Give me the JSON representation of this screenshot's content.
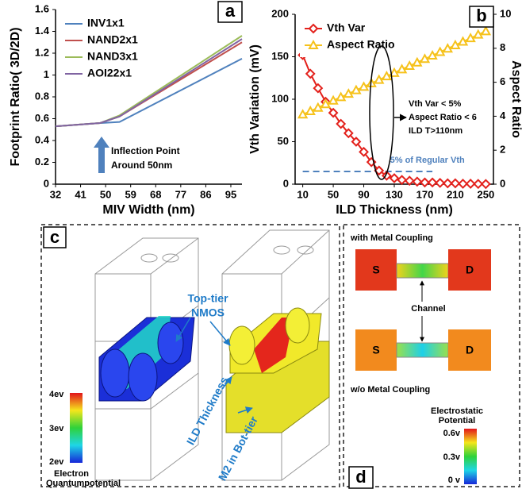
{
  "chart_data": [
    {
      "type": "line",
      "panel": "a",
      "xlabel": "MIV Width (nm)",
      "ylabel": "Footprint Ratio( 3D/2D)",
      "x": [
        32,
        48,
        55,
        99
      ],
      "xlim": [
        32,
        99
      ],
      "xticks": [
        32,
        41,
        50,
        59,
        68,
        77,
        86,
        95
      ],
      "ylim": [
        0,
        1.6
      ],
      "yticks": [
        0,
        0.2,
        0.4,
        0.6,
        0.8,
        1,
        1.2,
        1.4,
        1.6
      ],
      "legend": "upper left",
      "series": [
        {
          "name": "INV1x1",
          "color": "#4f81bd",
          "values": [
            0.53,
            0.56,
            0.57,
            1.15
          ]
        },
        {
          "name": "NAND2x1",
          "color": "#c0504d",
          "values": [
            0.53,
            0.56,
            0.62,
            1.3
          ]
        },
        {
          "name": "NAND3x1",
          "color": "#9bbb59",
          "values": [
            0.53,
            0.56,
            0.63,
            1.36
          ]
        },
        {
          "name": "AOI22x1",
          "color": "#8064a2",
          "values": [
            0.53,
            0.56,
            0.62,
            1.33
          ]
        }
      ],
      "annotation": [
        "Inflection Point",
        "Around 50nm"
      ]
    },
    {
      "type": "line",
      "panel": "b",
      "xlabel": "ILD Thickness (nm)",
      "ylabel": "Vth Variation (mV)",
      "y2label": "Aspect Ratio",
      "x": [
        10,
        20,
        30,
        40,
        50,
        60,
        70,
        80,
        90,
        100,
        110,
        120,
        130,
        140,
        150,
        160,
        170,
        180,
        190,
        200,
        210,
        220,
        230,
        240,
        250
      ],
      "xlim": [
        0,
        260
      ],
      "xticks": [
        10,
        50,
        90,
        130,
        170,
        210,
        250
      ],
      "ylim": [
        0,
        200
      ],
      "yticks": [
        0,
        50,
        100,
        150,
        200
      ],
      "y2lim": [
        0,
        10
      ],
      "y2ticks": [
        0,
        2,
        4,
        6,
        8,
        10
      ],
      "legend": "upper left",
      "series": [
        {
          "name": "Vth Var",
          "color": "#e3211c",
          "marker": "diamond",
          "values": [
            152,
            130,
            113,
            97,
            84,
            71,
            60,
            50,
            38,
            26,
            16,
            10,
            7,
            5,
            4,
            3,
            2,
            2,
            1.5,
            1,
            1,
            0.5,
            0.5,
            0.3,
            0.2
          ]
        },
        {
          "name": "Aspect Ratio",
          "color": "#f6c21c",
          "marker": "triangle",
          "axis": "y2",
          "values": [
            4.1,
            4.3,
            4.5,
            4.71,
            4.92,
            5.12,
            5.32,
            5.53,
            5.73,
            5.94,
            6.14,
            6.35,
            6.55,
            6.76,
            6.96,
            7.16,
            7.37,
            7.57,
            7.78,
            7.98,
            8.18,
            8.39,
            8.59,
            8.8,
            9.0
          ]
        }
      ],
      "reference_line": {
        "value": 15,
        "label": "5% of Regular Vth",
        "xrange": [
          10,
          180
        ],
        "color": "#4f81bd"
      },
      "annotation": [
        "Vth Var < 5%",
        "Aspect Ratio < 6",
        "ILD T>110nm"
      ]
    }
  ],
  "panel_c": {
    "label": "c",
    "tier_label": [
      "Top-tier",
      "NMOS"
    ],
    "ild_label": "ILD Thickness",
    "m2_label": "M2 in Bot-tier",
    "colorbar": {
      "ticks": [
        "4ev",
        "3ev",
        "2ev"
      ],
      "title": [
        "Electron",
        "Quantumpotential"
      ]
    }
  },
  "panel_d": {
    "label": "d",
    "top_caption": "with Metal Coupling",
    "bottom_caption": "w/o Metal Coupling",
    "source": "S",
    "drain": "D",
    "channel": "Channel",
    "colorbar": {
      "title": [
        "Electrostatic",
        "Potential"
      ],
      "ticks": [
        "0.6v",
        "0.3v",
        "0 v"
      ]
    }
  }
}
